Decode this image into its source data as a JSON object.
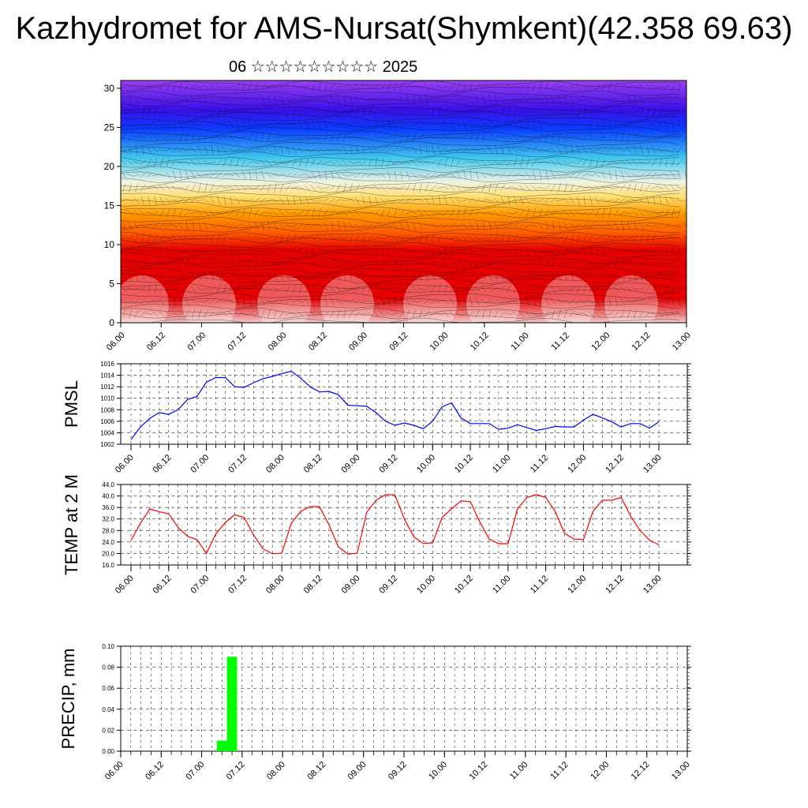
{
  "header": {
    "title": "Kazhydromet for AMS-Nursat(Shymkent)(42.358 69.63)",
    "subtitle": "06 ☆☆☆☆☆☆☆☆☆ 2025"
  },
  "time_ticks": [
    "06.00",
    "06.12",
    "07.00",
    "07.12",
    "08.00",
    "08.12",
    "09.00",
    "09.12",
    "10.00",
    "10.12",
    "11.00",
    "11.12",
    "12.00",
    "12.12",
    "13.00"
  ],
  "chart_data": [
    {
      "type": "heatmap",
      "title": "",
      "xlabel": "",
      "ylabel": "",
      "y_ticks": [
        0,
        5,
        10,
        15,
        20,
        25,
        30
      ],
      "ylim": [
        0,
        31
      ],
      "colors": {
        "lowest": "#f2c6c6",
        "low": "#e60000",
        "mid": "#ff5a00",
        "orange": "#ff9a00",
        "yellow": "#ffe070",
        "pale": "#f2f2e6",
        "sky": "#40c8f0",
        "blue": "#0a3cff",
        "indigo": "#3a10e8",
        "violet": "#9a40f0"
      }
    },
    {
      "type": "line",
      "ylabel": "PMSL",
      "y_ticks": [
        "1002",
        "1004",
        "1006",
        "1008",
        "1010",
        "1012",
        "1014",
        "1016"
      ],
      "ylim": [
        1002,
        1016
      ],
      "color": "#0000ff",
      "values": [
        1002.8,
        1005,
        1006.5,
        1007.5,
        1007.2,
        1008,
        1009.8,
        1010.3,
        1012.8,
        1013.6,
        1013.6,
        1012,
        1011.9,
        1012.7,
        1013.4,
        1013.8,
        1014.3,
        1014.7,
        1013.5,
        1012,
        1011.1,
        1011.2,
        1010.6,
        1008.8,
        1008.7,
        1008.6,
        1007.5,
        1006,
        1005.3,
        1005.7,
        1005.3,
        1004.7,
        1006,
        1008.5,
        1009.2,
        1006.6,
        1005.6,
        1005.6,
        1005.6,
        1004.6,
        1004.8,
        1005.4,
        1004.9,
        1004.4,
        1004.7,
        1005.1,
        1005,
        1005,
        1006.2,
        1007.2,
        1006.6,
        1005.9,
        1005,
        1005.6,
        1005.6,
        1004.8,
        1005.9
      ]
    },
    {
      "type": "line",
      "ylabel": "TEMP at 2 M",
      "y_ticks": [
        "16.0",
        "20.0",
        "24.0",
        "28.0",
        "32.0",
        "36.0",
        "40.0",
        "44.0"
      ],
      "ylim": [
        16,
        44
      ],
      "color": "#ff0000",
      "values": [
        24.5,
        30.5,
        35.5,
        34.5,
        33.8,
        29,
        26,
        24.8,
        20,
        26.8,
        30.8,
        33.5,
        32.5,
        26.5,
        21.6,
        19.9,
        20.1,
        30.5,
        34.6,
        36.3,
        36.3,
        30,
        22.3,
        19.8,
        20.1,
        34.3,
        38.5,
        40.5,
        40.4,
        32,
        25.8,
        23.5,
        23.7,
        32.5,
        35.5,
        38.3,
        38,
        31,
        25,
        23.4,
        23.4,
        35.5,
        39.5,
        40.5,
        39.5,
        34.6,
        27,
        25,
        24.8,
        34.6,
        38.5,
        38.5,
        39.5,
        33,
        28,
        24.7,
        23
      ]
    },
    {
      "type": "bar",
      "ylabel": "PRECIP, mm",
      "y_ticks": [
        "0.00",
        "0.02",
        "0.04",
        "0.06",
        "0.08",
        "0.10"
      ],
      "ylim": [
        0,
        0.1
      ],
      "color": "#00ff00",
      "bars": [
        {
          "x": 9,
          "value": 0.01
        },
        {
          "x": 10,
          "value": 0.09
        }
      ]
    }
  ]
}
